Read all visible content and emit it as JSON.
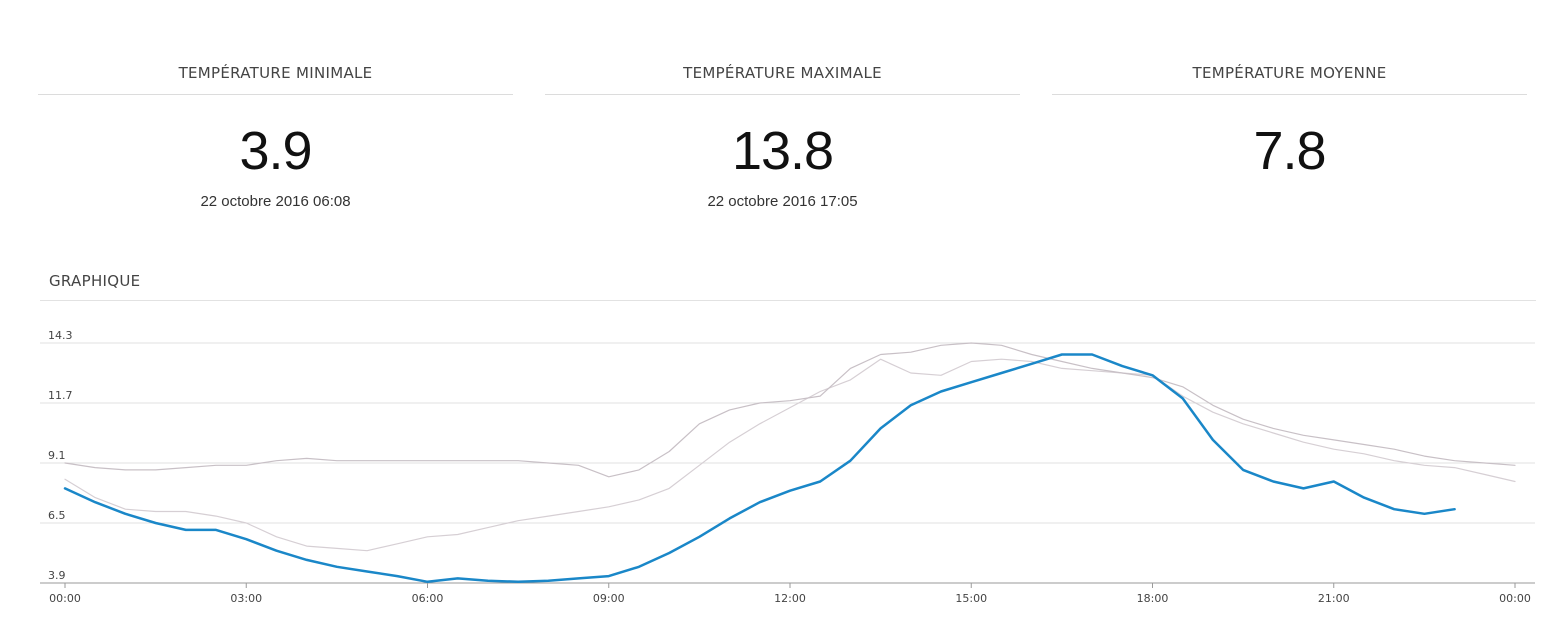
{
  "stats": [
    {
      "title": "TEMPÉRATURE MINIMALE",
      "value": "3.9",
      "date": "22 octobre 2016 06:08"
    },
    {
      "title": "TEMPÉRATURE MAXIMALE",
      "value": "13.8",
      "date": "22 octobre 2016 17:05"
    },
    {
      "title": "TEMPÉRATURE MOYENNE",
      "value": "7.8",
      "date": ""
    }
  ],
  "section_title": "GRAPHIQUE",
  "chart_data": {
    "type": "line",
    "title": "",
    "xlabel": "",
    "ylabel": "",
    "y_ticks": [
      "3.9",
      "6.5",
      "9.1",
      "11.7",
      "14.3"
    ],
    "x_ticks": [
      "00:00",
      "03:00",
      "06:00",
      "09:00",
      "12:00",
      "15:00",
      "18:00",
      "21:00",
      "00:00"
    ],
    "ylim": [
      3.9,
      14.3
    ],
    "xlim_hours": [
      0,
      24
    ],
    "grid": true,
    "series": [
      {
        "color": "#1a87c8",
        "width": 2.5,
        "x": [
          0,
          0.5,
          1,
          1.5,
          2,
          2.5,
          3,
          3.5,
          4,
          4.5,
          5,
          5.5,
          6,
          6.5,
          7,
          7.5,
          8,
          8.5,
          9,
          9.5,
          10,
          10.5,
          11,
          11.5,
          12,
          12.5,
          13,
          13.5,
          14,
          14.5,
          15,
          15.5,
          16,
          16.5,
          17,
          17.5,
          18,
          18.5,
          19,
          19.5,
          20,
          20.5,
          21,
          21.5,
          22,
          22.5,
          23
        ],
        "y": [
          8.0,
          7.4,
          6.9,
          6.5,
          6.2,
          6.2,
          5.8,
          5.3,
          4.9,
          4.6,
          4.4,
          4.2,
          3.95,
          4.1,
          4.0,
          3.95,
          4.0,
          4.1,
          4.2,
          4.6,
          5.2,
          5.9,
          6.7,
          7.4,
          7.9,
          8.3,
          9.2,
          10.6,
          11.6,
          12.2,
          12.6,
          13.0,
          13.4,
          13.8,
          13.8,
          13.3,
          12.9,
          11.9,
          10.1,
          8.8,
          8.3,
          8.0,
          8.3,
          7.6,
          7.1,
          6.9,
          7.1
        ]
      },
      {
        "color": "#c8c0c6",
        "width": 1.2,
        "x": [
          0,
          0.5,
          1,
          1.5,
          2,
          2.5,
          3,
          3.5,
          4,
          4.5,
          5,
          5.5,
          6,
          6.5,
          7,
          7.5,
          8,
          8.5,
          9,
          9.5,
          10,
          10.5,
          11,
          11.5,
          12,
          12.5,
          13,
          13.5,
          14,
          14.5,
          15,
          15.5,
          16,
          16.5,
          17,
          17.5,
          18,
          18.5,
          19,
          19.5,
          20,
          20.5,
          21,
          21.5,
          22,
          22.5,
          23,
          23.5,
          24
        ],
        "y": [
          9.1,
          8.9,
          8.8,
          8.8,
          8.9,
          9.0,
          9.0,
          9.2,
          9.3,
          9.2,
          9.2,
          9.2,
          9.2,
          9.2,
          9.2,
          9.2,
          9.1,
          9.0,
          8.5,
          8.8,
          9.6,
          10.8,
          11.4,
          11.7,
          11.8,
          12.0,
          13.2,
          13.8,
          13.9,
          14.2,
          14.3,
          14.2,
          13.8,
          13.5,
          13.2,
          13.0,
          12.8,
          12.4,
          11.6,
          11.0,
          10.6,
          10.3,
          10.1,
          9.9,
          9.7,
          9.4,
          9.2,
          9.1,
          9.0
        ]
      },
      {
        "color": "#d6cfd4",
        "width": 1.2,
        "x": [
          0,
          0.5,
          1,
          1.5,
          2,
          2.5,
          3,
          3.5,
          4,
          4.5,
          5,
          5.5,
          6,
          6.5,
          7,
          7.5,
          8,
          8.5,
          9,
          9.5,
          10,
          10.5,
          11,
          11.5,
          12,
          12.5,
          13,
          13.5,
          14,
          14.5,
          15,
          15.5,
          16,
          16.5,
          17,
          17.5,
          18,
          18.5,
          19,
          19.5,
          20,
          20.5,
          21,
          21.5,
          22,
          22.5,
          23,
          23.5,
          24
        ],
        "y": [
          8.4,
          7.6,
          7.1,
          7.0,
          7.0,
          6.8,
          6.5,
          5.9,
          5.5,
          5.4,
          5.3,
          5.6,
          5.9,
          6.0,
          6.3,
          6.6,
          6.8,
          7.0,
          7.2,
          7.5,
          8.0,
          9.0,
          10.0,
          10.8,
          11.5,
          12.2,
          12.7,
          13.6,
          13.0,
          12.9,
          13.5,
          13.6,
          13.5,
          13.2,
          13.1,
          13.0,
          12.9,
          12.0,
          11.3,
          10.8,
          10.4,
          10.0,
          9.7,
          9.5,
          9.2,
          9.0,
          8.9,
          8.6,
          8.3
        ]
      }
    ]
  }
}
